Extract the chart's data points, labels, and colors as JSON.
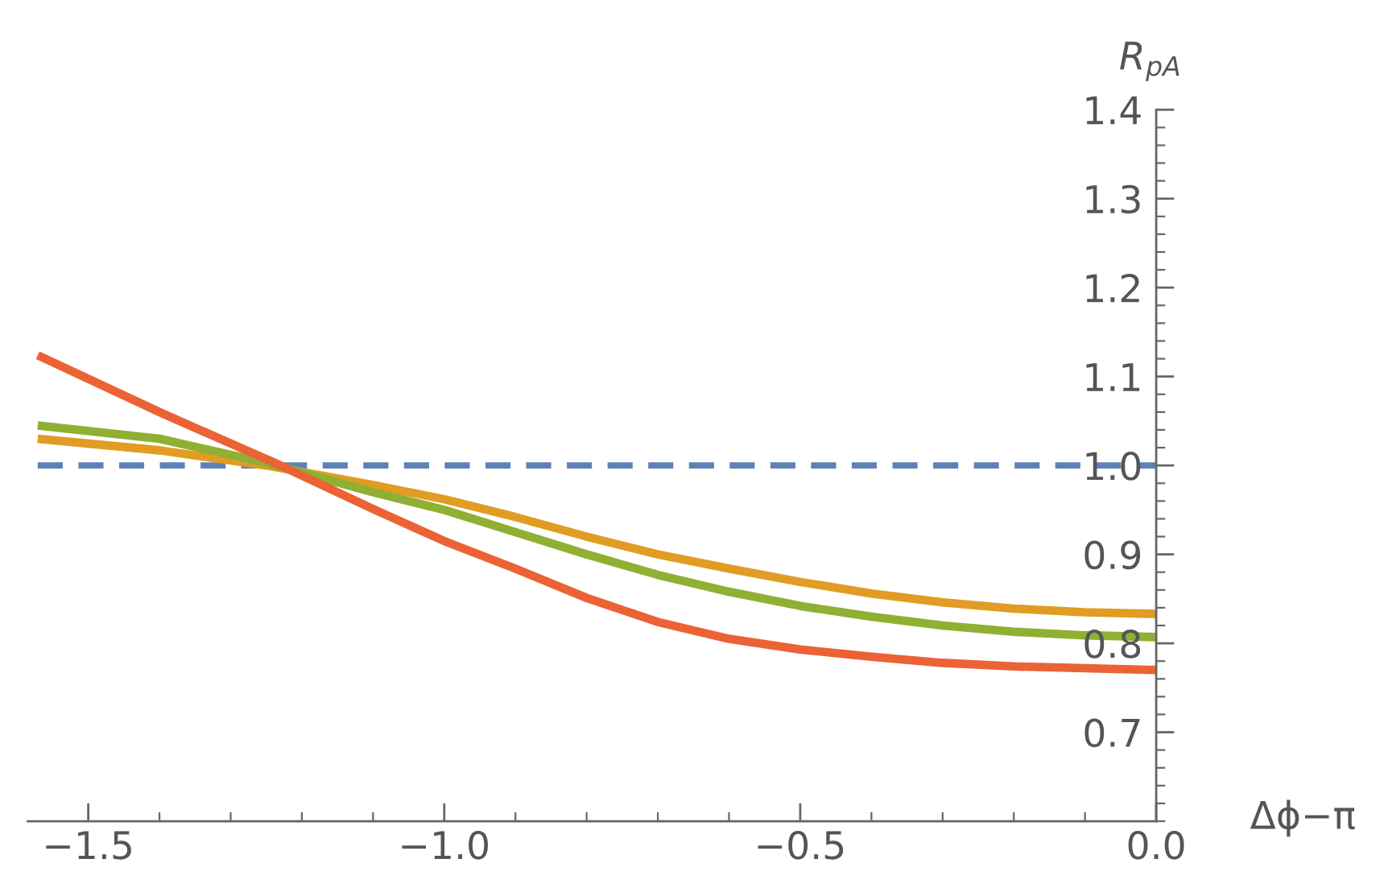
{
  "chart_data": {
    "type": "line",
    "xlabel": "Δϕ−π",
    "ylabel": "R$_{pA}$",
    "xlim": [
      -1.585,
      0
    ],
    "ylim": [
      0.6,
      1.4
    ],
    "xticks": [
      {
        "value": -1.5,
        "label": "−1.5"
      },
      {
        "value": -1.0,
        "label": "−1.0"
      },
      {
        "value": -0.5,
        "label": "−0.5"
      },
      {
        "value": 0,
        "label": "0.0"
      }
    ],
    "yticks": [
      0.7,
      0.8,
      0.9,
      {
        "value": 1.0,
        "label": "1.0"
      },
      1.1,
      1.2,
      1.3,
      1.4
    ],
    "ref_lines": [
      {
        "axis": "y",
        "value": 1.0,
        "color": "#5e81b5",
        "line_style": "dashed"
      }
    ],
    "series": [
      {
        "color": "#e19c24",
        "x": [
          -1.571,
          -1.4,
          -1.25,
          -1.1,
          -1.0,
          -0.9,
          -0.8,
          -0.7,
          -0.6,
          -0.5,
          -0.4,
          -0.3,
          -0.2,
          -0.1,
          0
        ],
        "values": [
          1.03,
          1.017,
          1.0,
          0.978,
          0.962,
          0.942,
          0.92,
          0.9,
          0.884,
          0.869,
          0.856,
          0.846,
          0.839,
          0.835,
          0.833
        ]
      },
      {
        "color": "#8fb032",
        "x": [
          -1.571,
          -1.4,
          -1.25,
          -1.1,
          -1.0,
          -0.9,
          -0.8,
          -0.7,
          -0.6,
          -0.5,
          -0.4,
          -0.3,
          -0.2,
          -0.1,
          0
        ],
        "values": [
          1.045,
          1.03,
          1.003,
          0.97,
          0.95,
          0.925,
          0.9,
          0.877,
          0.858,
          0.842,
          0.83,
          0.82,
          0.813,
          0.809,
          0.807
        ]
      },
      {
        "color": "#eb6235",
        "x": [
          -1.571,
          -1.4,
          -1.23,
          -1.1,
          -1.0,
          -0.9,
          -0.8,
          -0.7,
          -0.6,
          -0.5,
          -0.4,
          -0.3,
          -0.2,
          -0.1,
          0
        ],
        "values": [
          1.124,
          1.06,
          1.0,
          0.951,
          0.915,
          0.884,
          0.851,
          0.824,
          0.805,
          0.793,
          0.785,
          0.778,
          0.774,
          0.772,
          0.77
        ]
      }
    ]
  }
}
